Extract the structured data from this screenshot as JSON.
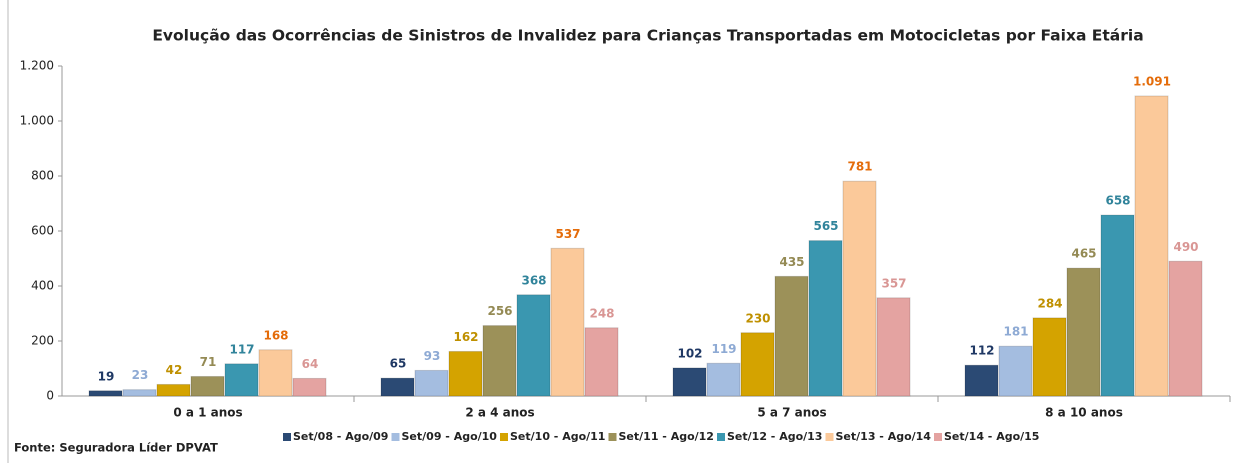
{
  "chart_data": {
    "type": "bar",
    "title": "Evolução das Ocorrências de Sinistros  de Invalidez para Crianças Transportadas  em Motocicletas por Faixa Etária",
    "source": "Fonte: Seguradora Líder DPVAT",
    "categories": [
      "0 a 1 anos",
      "2 a 4 anos",
      "5 a 7 anos",
      "8 a 10 anos"
    ],
    "series": [
      {
        "name": "Set/08 - Ago/09",
        "color": "#2b4a74",
        "label_color": "#1f3864",
        "values": [
          19,
          65,
          102,
          112
        ]
      },
      {
        "name": "Set/09 - Ago/10",
        "color": "#a4bde0",
        "label_color": "#8eaad4",
        "values": [
          23,
          93,
          119,
          181
        ]
      },
      {
        "name": "Set/10 - Ago/11",
        "color": "#d4a300",
        "label_color": "#bf9000",
        "values": [
          42,
          162,
          230,
          284
        ]
      },
      {
        "name": "Set/11 - Ago/12",
        "color": "#9c9159",
        "label_color": "#948a54",
        "values": [
          71,
          256,
          435,
          465
        ]
      },
      {
        "name": "Set/12 - Ago/13",
        "color": "#3a97b0",
        "label_color": "#31849b",
        "values": [
          117,
          368,
          565,
          658
        ]
      },
      {
        "name": "Set/13 - Ago/14",
        "color": "#fbc99a",
        "label_color": "#e46c0a",
        "values": [
          168,
          537,
          781,
          1091
        ],
        "value_labels": [
          "168",
          "537",
          "781",
          "1.091"
        ]
      },
      {
        "name": "Set/14 - Ago/15",
        "color": "#e4a3a1",
        "label_color": "#d99694",
        "values": [
          64,
          248,
          357,
          490
        ]
      }
    ],
    "ylim": [
      0,
      1200
    ],
    "yticks": [
      0,
      200,
      400,
      600,
      800,
      {
        "value": 1000,
        "label": "1.000"
      },
      {
        "value": 1200,
        "label": "1.200"
      }
    ]
  }
}
